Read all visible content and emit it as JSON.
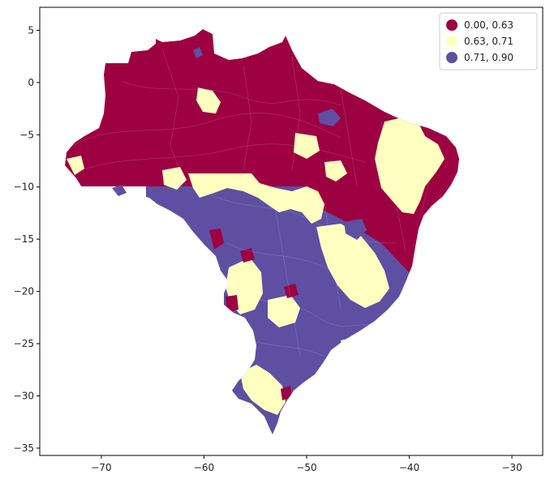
{
  "map": {
    "type": "choropleth",
    "region": "Brazil municipalities",
    "x_ticks": [
      "−70",
      "−60",
      "−50",
      "−40",
      "−30"
    ],
    "y_ticks": [
      "5",
      "0",
      "−5",
      "−10",
      "−15",
      "−20",
      "−25",
      "−30",
      "−35"
    ],
    "x_range": [
      -76,
      -27
    ],
    "y_range": [
      -35.7,
      7.2
    ],
    "legend": {
      "placement": "top-right",
      "items": [
        {
          "label": "0.00, 0.63",
          "color": "#9e0142"
        },
        {
          "label": "0.63, 0.71",
          "color": "#ffffbf"
        },
        {
          "label": "0.71, 0.90",
          "color": "#5e4fa2"
        }
      ]
    },
    "grid": false
  }
}
